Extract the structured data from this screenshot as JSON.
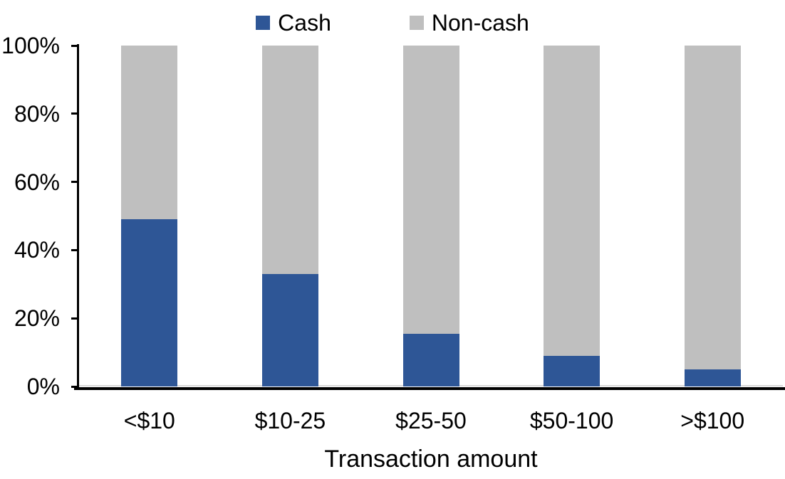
{
  "figure": {
    "background": "#FFFFFF",
    "text_color": "#000000"
  },
  "legend": {
    "items": [
      {
        "label": "Cash",
        "color": "#2E5696"
      },
      {
        "label": "Non-cash",
        "color": "#BFBFBF"
      }
    ]
  },
  "x_axis": {
    "title": "Transaction amount",
    "categories": [
      "<$10",
      "$10-25",
      "$25-50",
      "$50-100",
      ">$100"
    ]
  },
  "y_axis": {
    "tick_labels": [
      "0%",
      "20%",
      "40%",
      "60%",
      "80%",
      "100%"
    ],
    "min": 0,
    "max": 100
  },
  "colors": {
    "cash": "#2E5696",
    "non_cash": "#BFBFBF",
    "axis": "#000000",
    "plot_border": "#D9D9D9"
  },
  "chart_data": {
    "type": "bar",
    "stacked": true,
    "title": "",
    "xlabel": "Transaction amount",
    "ylabel": "",
    "categories": [
      "<$10",
      "$10-25",
      "$25-50",
      "$50-100",
      ">$100"
    ],
    "series": [
      {
        "name": "Cash",
        "color": "#2E5696",
        "values": [
          49,
          33,
          15.5,
          9,
          5
        ]
      },
      {
        "name": "Non-cash",
        "color": "#BFBFBF",
        "values": [
          51,
          67,
          84.5,
          91,
          95
        ]
      }
    ],
    "ylim": [
      0,
      100
    ],
    "ytick_labels": [
      "0%",
      "20%",
      "40%",
      "60%",
      "80%",
      "100%"
    ],
    "grid": false,
    "legend_position": "top"
  }
}
